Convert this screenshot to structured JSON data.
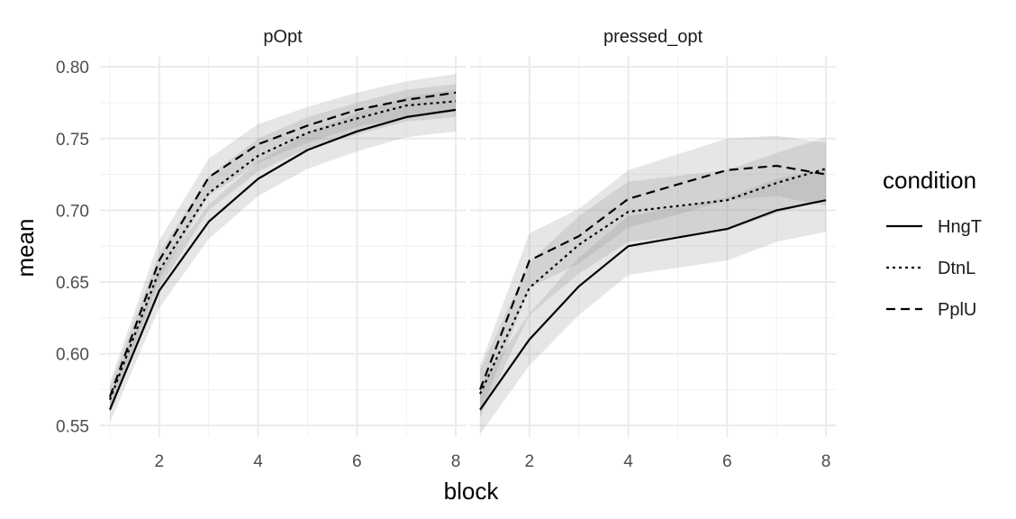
{
  "chart_data": {
    "type": "line",
    "xlabel": "block",
    "ylabel": "mean",
    "xlim": [
      0.8,
      8.2
    ],
    "ylim": [
      0.542,
      0.807
    ],
    "xticks": [
      2,
      4,
      6,
      8
    ],
    "yticks": [
      0.55,
      0.6,
      0.65,
      0.7,
      0.75,
      0.8
    ],
    "ytick_labels": [
      "0.55",
      "0.60",
      "0.65",
      "0.70",
      "0.75",
      "0.80"
    ],
    "grid": true,
    "legend": {
      "title": "condition",
      "position": "right",
      "entries": [
        {
          "label": "HngT",
          "linetype": "solid"
        },
        {
          "label": "DtnL",
          "linetype": "dotted"
        },
        {
          "label": "PplU",
          "linetype": "dashed"
        }
      ]
    },
    "panels": [
      {
        "title": "pOpt",
        "x": [
          1,
          2,
          3,
          4,
          5,
          6,
          7,
          8
        ],
        "series": [
          {
            "name": "HngT",
            "linetype": "solid",
            "values": [
              0.561,
              0.644,
              0.692,
              0.722,
              0.742,
              0.755,
              0.765,
              0.77
            ],
            "lower": [
              0.552,
              0.632,
              0.68,
              0.71,
              0.729,
              0.741,
              0.751,
              0.755
            ],
            "upper": [
              0.57,
              0.657,
              0.704,
              0.734,
              0.754,
              0.768,
              0.779,
              0.784
            ]
          },
          {
            "name": "DtnL",
            "linetype": "dotted",
            "values": [
              0.568,
              0.658,
              0.712,
              0.738,
              0.754,
              0.764,
              0.773,
              0.776
            ],
            "lower": [
              0.559,
              0.646,
              0.7,
              0.727,
              0.743,
              0.753,
              0.762,
              0.765
            ],
            "upper": [
              0.577,
              0.67,
              0.724,
              0.75,
              0.765,
              0.775,
              0.784,
              0.788
            ]
          },
          {
            "name": "PplU",
            "linetype": "dashed",
            "values": [
              0.57,
              0.665,
              0.723,
              0.746,
              0.759,
              0.77,
              0.777,
              0.782
            ],
            "lower": [
              0.56,
              0.652,
              0.71,
              0.733,
              0.747,
              0.758,
              0.765,
              0.769
            ],
            "upper": [
              0.58,
              0.679,
              0.736,
              0.76,
              0.772,
              0.782,
              0.79,
              0.795
            ]
          }
        ]
      },
      {
        "title": "pressed_opt",
        "x": [
          1,
          2,
          3,
          4,
          5,
          6,
          7,
          8
        ],
        "series": [
          {
            "name": "HngT",
            "linetype": "solid",
            "values": [
              0.561,
              0.61,
              0.647,
              0.675,
              0.681,
              0.687,
              0.7,
              0.707
            ],
            "lower": [
              0.544,
              0.592,
              0.627,
              0.655,
              0.66,
              0.665,
              0.678,
              0.685
            ],
            "upper": [
              0.578,
              0.628,
              0.667,
              0.696,
              0.702,
              0.709,
              0.722,
              0.729
            ]
          },
          {
            "name": "DtnL",
            "linetype": "dotted",
            "values": [
              0.572,
              0.646,
              0.676,
              0.699,
              0.703,
              0.707,
              0.719,
              0.729
            ],
            "lower": [
              0.556,
              0.627,
              0.656,
              0.678,
              0.682,
              0.686,
              0.698,
              0.708
            ],
            "upper": [
              0.589,
              0.664,
              0.696,
              0.72,
              0.724,
              0.728,
              0.74,
              0.751
            ]
          },
          {
            "name": "PplU",
            "linetype": "dashed",
            "values": [
              0.575,
              0.665,
              0.682,
              0.708,
              0.718,
              0.728,
              0.731,
              0.725
            ],
            "lower": [
              0.558,
              0.646,
              0.663,
              0.688,
              0.697,
              0.707,
              0.71,
              0.703
            ],
            "upper": [
              0.592,
              0.684,
              0.701,
              0.728,
              0.739,
              0.75,
              0.752,
              0.747
            ]
          }
        ]
      }
    ]
  }
}
